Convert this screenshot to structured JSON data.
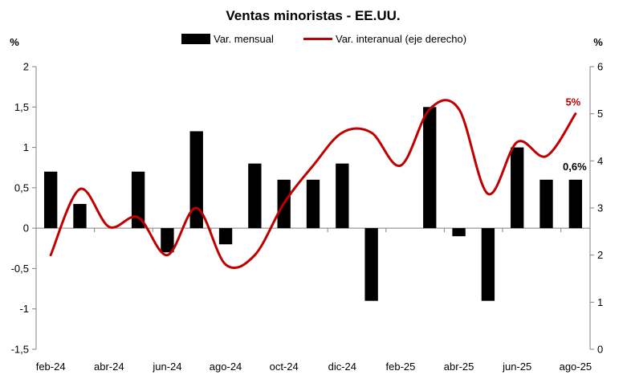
{
  "chart_data": {
    "type": "bar",
    "title": "Ventas minoristas - EE.UU.",
    "y_left_unit": "%",
    "y_right_unit": "%",
    "categories": [
      "feb-24",
      "mar-24",
      "abr-24",
      "may-24",
      "jun-24",
      "jul-24",
      "ago-24",
      "sep-24",
      "oct-24",
      "nov-24",
      "dic-24",
      "ene-25",
      "feb-25",
      "mar-25",
      "abr-25",
      "may-25",
      "jun-25",
      "jul-25",
      "ago-25"
    ],
    "x_tick_labels": [
      "feb-24",
      "abr-24",
      "jun-24",
      "ago-24",
      "oct-24",
      "dic-24",
      "feb-25",
      "abr-25",
      "jun-25",
      "ago-25"
    ],
    "y_left": {
      "min": -1.5,
      "max": 2,
      "ticks": [
        -1.5,
        -1,
        -0.5,
        0,
        0.5,
        1,
        1.5,
        2
      ],
      "tick_labels": [
        "-1,5",
        "-1",
        "-0,5",
        "0",
        "0,5",
        "1",
        "1,5",
        "2"
      ]
    },
    "y_right": {
      "min": 0,
      "max": 6,
      "ticks": [
        0,
        1,
        2,
        3,
        4,
        5,
        6
      ],
      "tick_labels": [
        "0",
        "1",
        "2",
        "3",
        "4",
        "5",
        "6"
      ]
    },
    "series": [
      {
        "name": "Var. mensual",
        "type": "bar",
        "axis": "left",
        "color": "#000000",
        "values": [
          0.7,
          0.3,
          0.0,
          0.7,
          -0.3,
          1.2,
          -0.2,
          0.8,
          0.6,
          0.6,
          0.8,
          -0.9,
          0.0,
          1.5,
          -0.1,
          -0.9,
          1.0,
          0.6,
          0.6
        ]
      },
      {
        "name": "Var. interanual (eje derecho)",
        "type": "line",
        "axis": "right",
        "color": "#C00000",
        "values": [
          2.0,
          3.4,
          2.6,
          2.8,
          2.0,
          3.0,
          1.8,
          2.0,
          3.1,
          3.9,
          4.6,
          4.6,
          3.9,
          5.1,
          5.1,
          3.3,
          4.4,
          4.1,
          5.0
        ]
      }
    ],
    "annotations": [
      {
        "label": "0,6%",
        "series": "Var. mensual",
        "category": "ago-25",
        "color": "#000000"
      },
      {
        "label": "5%",
        "series": "Var. interanual (eje derecho)",
        "category": "ago-25",
        "color": "#C00000"
      }
    ],
    "legend": "top-center",
    "grid": false
  }
}
